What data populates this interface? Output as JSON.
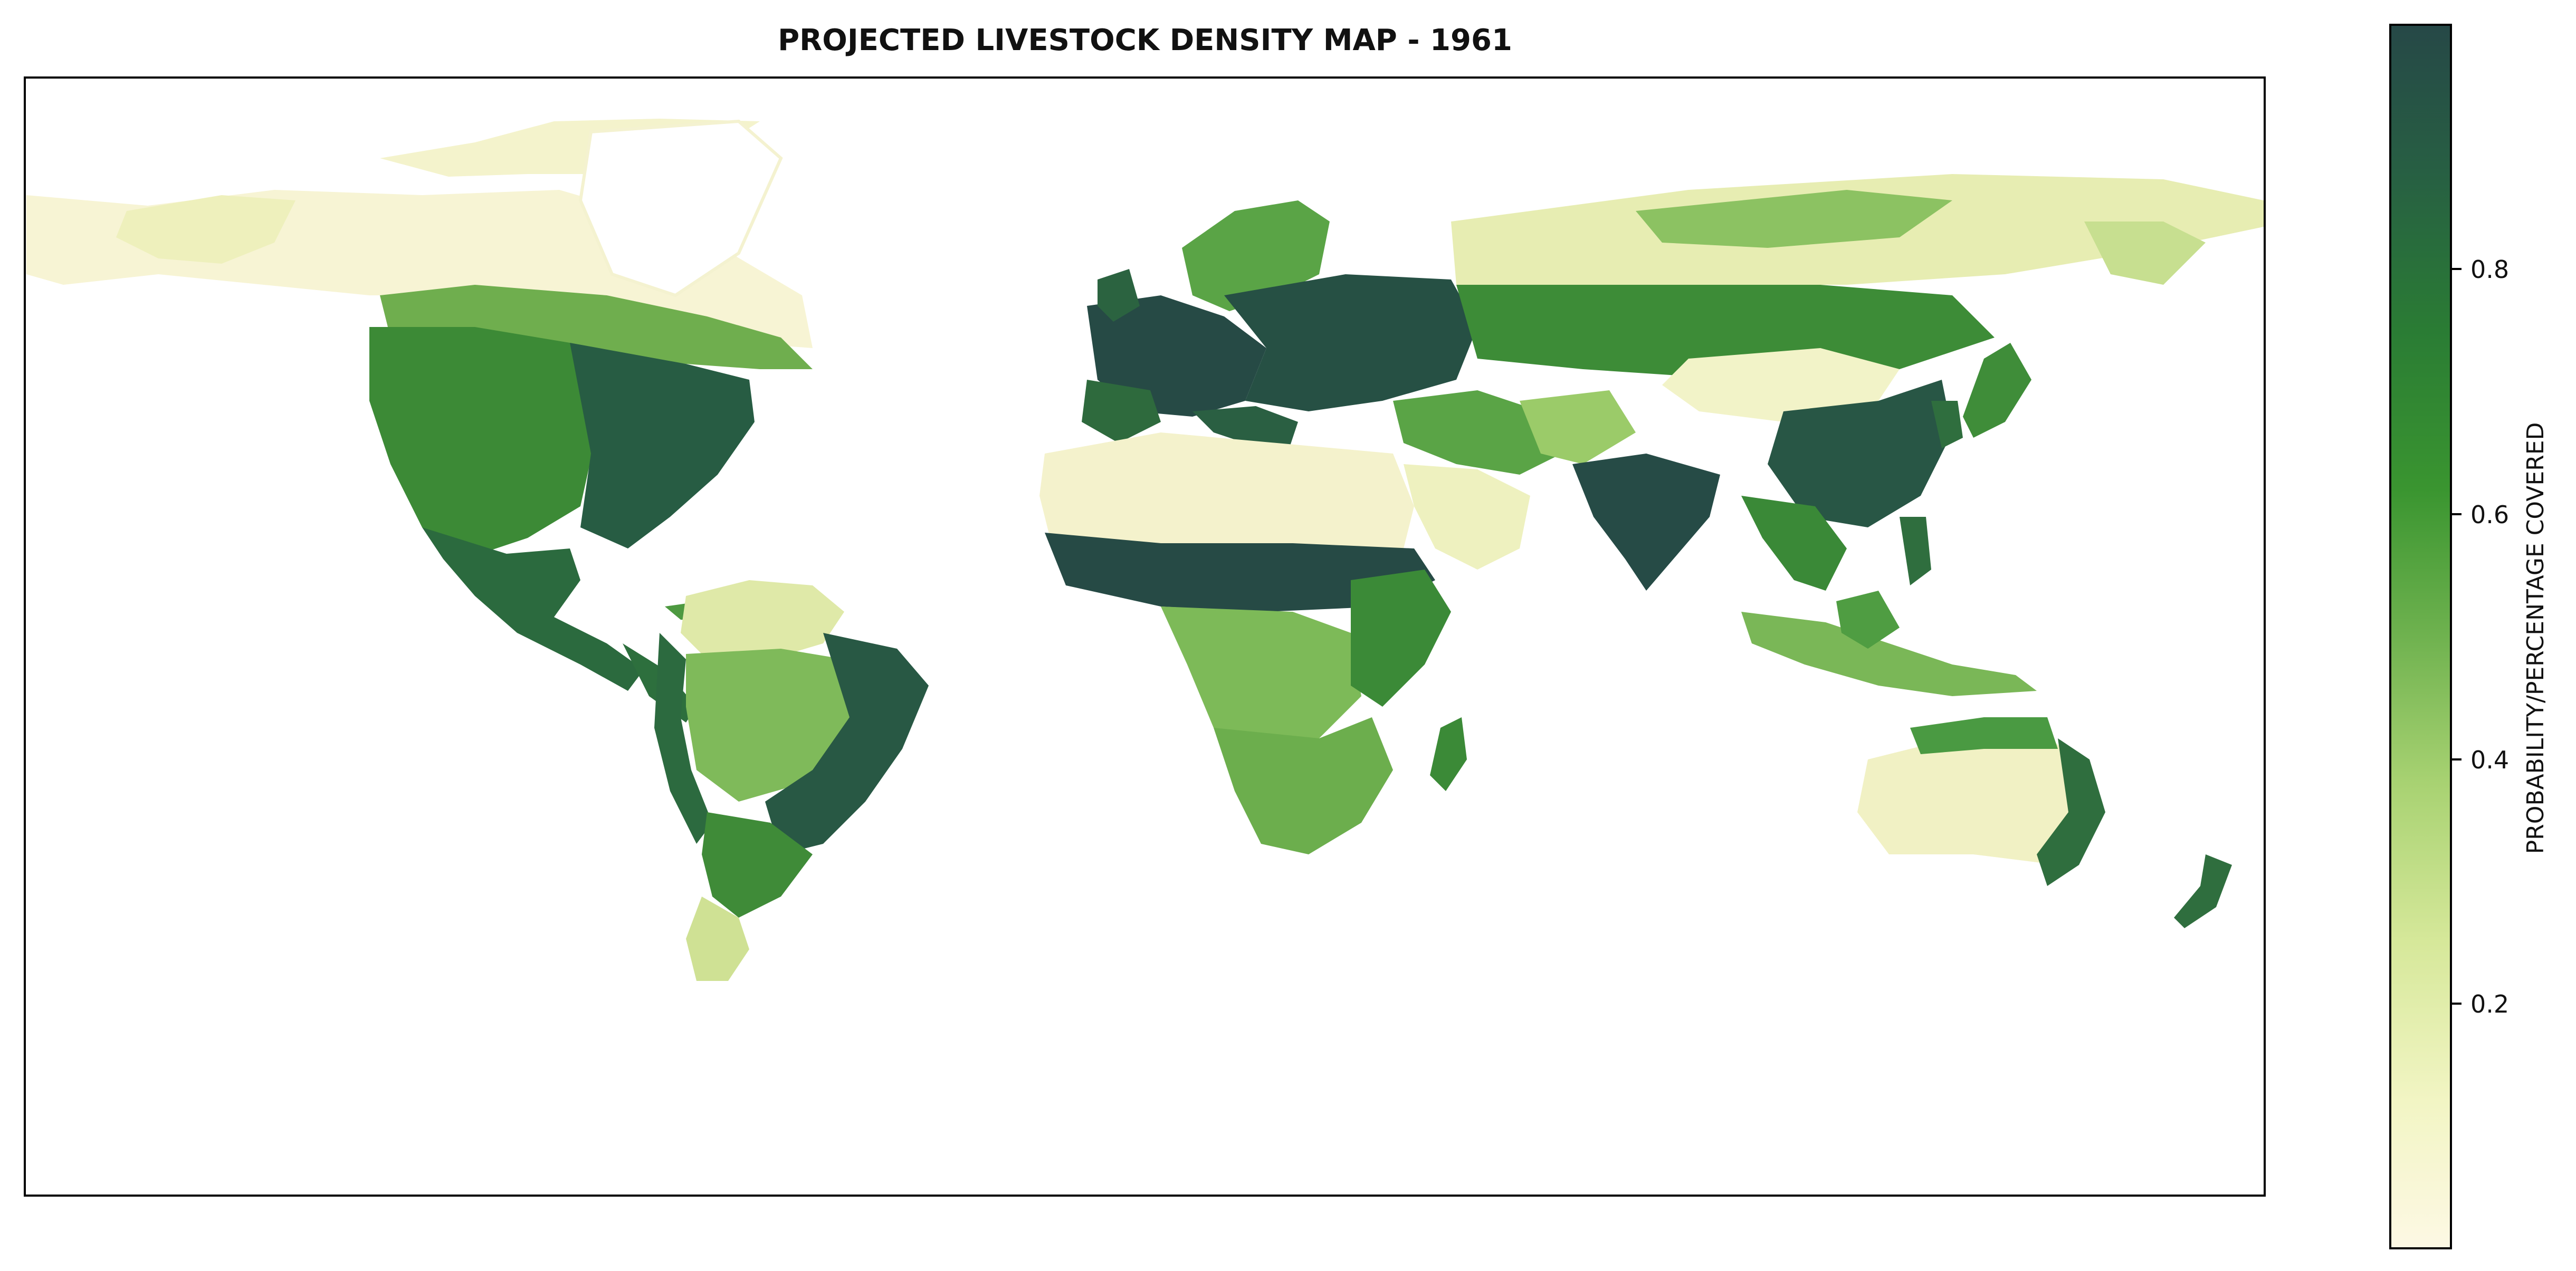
{
  "title": "PROJECTED LIVESTOCK DENSITY MAP - 1961",
  "colorbar": {
    "label": "PROBABILITY/PERCENTAGE COVERED",
    "ticks": [
      0.2,
      0.4,
      0.6,
      0.8
    ],
    "tick_labels": [
      "0.2",
      "0.4",
      "0.6",
      "0.8"
    ],
    "range": [
      0.0,
      1.0
    ],
    "colors": [
      "#fdf8e4",
      "#f2f5c4",
      "#d6e89a",
      "#a8d272",
      "#6fb24f",
      "#3a9530",
      "#2a7c34",
      "#275f43",
      "#264847"
    ]
  },
  "map": {
    "projection": "equirectangular",
    "extent": {
      "lon": [
        -180,
        180
      ],
      "lat": [
        -90,
        90
      ]
    },
    "regions": [
      {
        "name": "Canadian Arctic",
        "density": 0.12
      },
      {
        "name": "Alaska",
        "density": 0.15
      },
      {
        "name": "Canada South",
        "density": 0.55
      },
      {
        "name": "Western USA",
        "density": 0.65
      },
      {
        "name": "Eastern USA",
        "density": 0.85
      },
      {
        "name": "Mexico",
        "density": 0.8
      },
      {
        "name": "Central America",
        "density": 0.85
      },
      {
        "name": "Greenland",
        "density": 0.0
      },
      {
        "name": "Northern South America",
        "density": 0.35
      },
      {
        "name": "Amazon",
        "density": 0.55
      },
      {
        "name": "Eastern Brazil",
        "density": 0.88
      },
      {
        "name": "Southern South America",
        "density": 0.7
      },
      {
        "name": "Patagonia",
        "density": 0.35
      },
      {
        "name": "Western Europe",
        "density": 0.9
      },
      {
        "name": "Scandinavia",
        "density": 0.6
      },
      {
        "name": "Eastern Europe",
        "density": 0.9
      },
      {
        "name": "Siberia",
        "density": 0.2
      },
      {
        "name": "Central Asia",
        "density": 0.65
      },
      {
        "name": "Sahara",
        "density": 0.1
      },
      {
        "name": "Sahel",
        "density": 0.92
      },
      {
        "name": "Central Africa",
        "density": 0.6
      },
      {
        "name": "East Africa",
        "density": 0.75
      },
      {
        "name": "Southern Africa",
        "density": 0.65
      },
      {
        "name": "Madagascar",
        "density": 0.7
      },
      {
        "name": "Arabia",
        "density": 0.25
      },
      {
        "name": "Middle East",
        "density": 0.7
      },
      {
        "name": "India",
        "density": 0.92
      },
      {
        "name": "China",
        "density": 0.85
      },
      {
        "name": "Gobi / Tibet",
        "density": 0.15
      },
      {
        "name": "Japan",
        "density": 0.75
      },
      {
        "name": "Southeast Asia",
        "density": 0.75
      },
      {
        "name": "Indonesia",
        "density": 0.55
      },
      {
        "name": "Australia Interior",
        "density": 0.18
      },
      {
        "name": "Australia East Coast",
        "density": 0.8
      },
      {
        "name": "New Zealand",
        "density": 0.8
      }
    ]
  }
}
